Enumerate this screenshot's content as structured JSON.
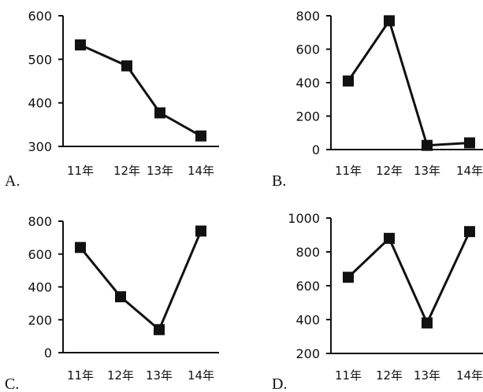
{
  "chart_data": [
    {
      "type": "line",
      "label": "A.",
      "categories": [
        "11年",
        "12年",
        "13年",
        "14年"
      ],
      "values": [
        533,
        485,
        377,
        324
      ],
      "ylim": [
        300,
        600
      ],
      "yticks": [
        "300",
        "400",
        "500",
        "600"
      ]
    },
    {
      "type": "line",
      "label": "B.",
      "categories": [
        "11年",
        "12年",
        "13年",
        "14年"
      ],
      "values": [
        410,
        770,
        25,
        40
      ],
      "ylim": [
        0,
        800
      ],
      "yticks": [
        "0",
        "200",
        "400",
        "600",
        "800"
      ]
    },
    {
      "type": "line",
      "label": "C.",
      "categories": [
        "11年",
        "12年",
        "13年",
        "14年"
      ],
      "values": [
        640,
        340,
        140,
        740
      ],
      "ylim": [
        0,
        800
      ],
      "yticks": [
        "0",
        "200",
        "400",
        "600",
        "800"
      ]
    },
    {
      "type": "line",
      "label": "D.",
      "categories": [
        "11年",
        "12年",
        "13年",
        "14年"
      ],
      "values": [
        650,
        880,
        380,
        920
      ],
      "ylim": [
        200,
        1000
      ],
      "yticks": [
        "200",
        "400",
        "600",
        "800",
        "1000"
      ]
    }
  ]
}
